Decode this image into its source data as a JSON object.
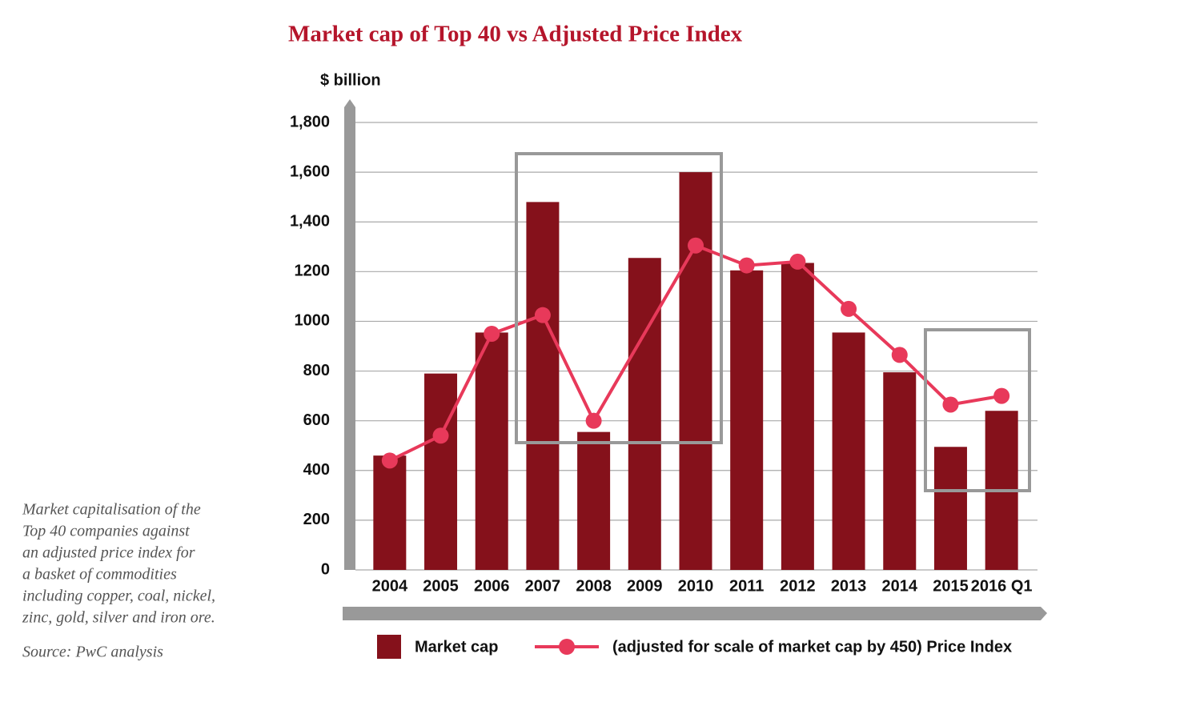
{
  "chart_data": {
    "type": "bar",
    "title": "Market cap of Top 40 vs Adjusted Price Index",
    "y_label": "$ billion",
    "categories": [
      "2004",
      "2005",
      "2006",
      "2007",
      "2008",
      "2009",
      "2010",
      "2011",
      "2012",
      "2013",
      "2014",
      "2015",
      "2016 Q1"
    ],
    "series": [
      {
        "name": "Market cap",
        "type": "bar",
        "color": "#85111b",
        "values": [
          460,
          790,
          955,
          1480,
          555,
          1255,
          1600,
          1205,
          1235,
          955,
          795,
          495,
          640
        ]
      },
      {
        "name": "(adjusted for scale of market cap by 450) Price Index",
        "type": "line",
        "color": "#e8395a",
        "connect_gaps": true,
        "values": [
          440,
          540,
          950,
          1025,
          600,
          null,
          1305,
          1225,
          1240,
          1050,
          865,
          665,
          700
        ]
      }
    ],
    "ylim": [
      0,
      1800
    ],
    "yticks": [
      0,
      200,
      400,
      600,
      800,
      1000,
      1200,
      {
        "value": 1400,
        "label": "1,400"
      },
      {
        "value": 1600,
        "label": "1,600"
      },
      {
        "value": 1800,
        "label": "1,800"
      }
    ],
    "grid": true,
    "legend": "bottom"
  },
  "note": [
    "Market capitalisation of the",
    "Top 40 companies against",
    "an adjusted price index for",
    "a basket of commodities",
    "including copper, coal, nickel,",
    "zinc, gold, silver and iron ore."
  ],
  "source": "Source: PwC analysis"
}
